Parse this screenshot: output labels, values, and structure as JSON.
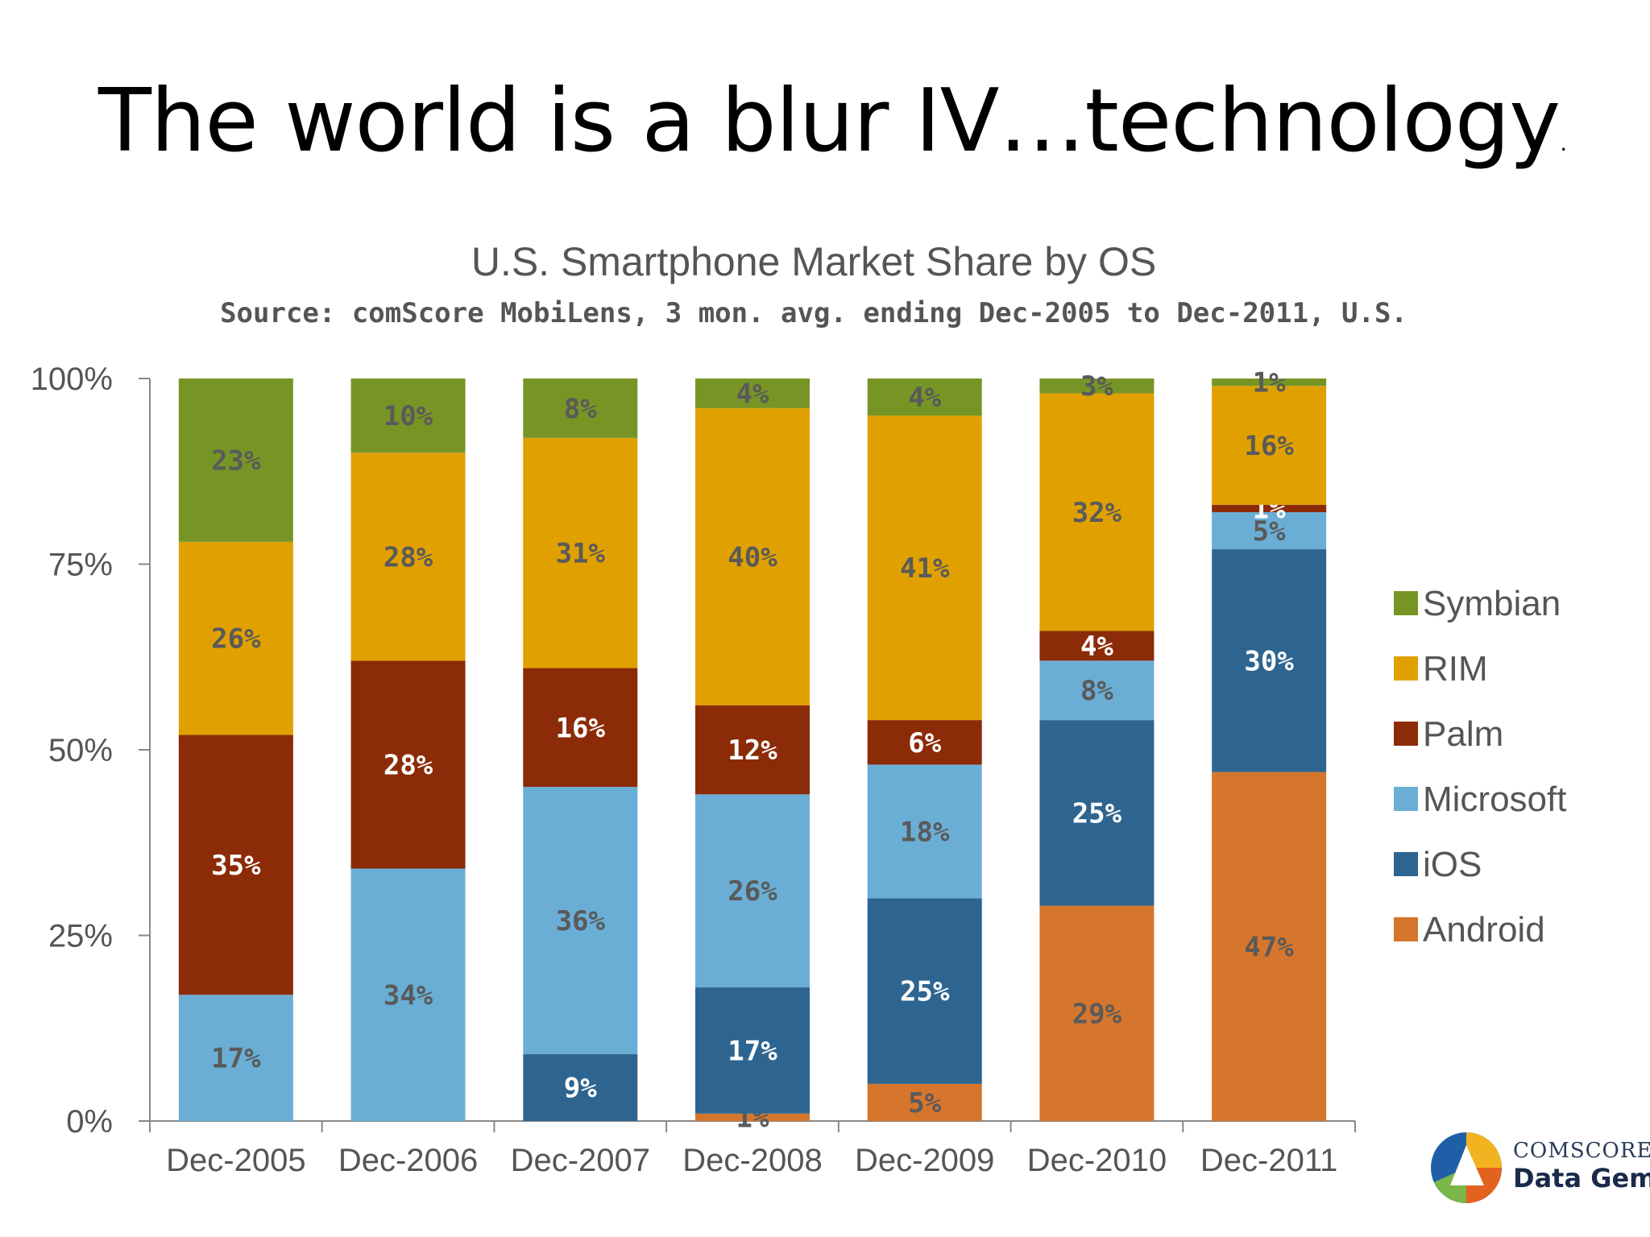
{
  "slide": {
    "title": "The world is a blur IV…technology",
    "title_suffix": "."
  },
  "logo": {
    "line1": "COMSCORE",
    "line2": "Data Gem",
    "icon": "comscore-logo-icon"
  },
  "chart_data": {
    "type": "bar",
    "stacked": true,
    "title": "U.S. Smartphone Market Share by OS",
    "subtitle": "Source: comScore MobiLens, 3 mon. avg. ending Dec-2005 to Dec-2011, U.S.",
    "categories": [
      "Dec-2005",
      "Dec-2006",
      "Dec-2007",
      "Dec-2008",
      "Dec-2009",
      "Dec-2010",
      "Dec-2011"
    ],
    "yticks": [
      "0%",
      "25%",
      "50%",
      "75%",
      "100%"
    ],
    "ylim": [
      0,
      100
    ],
    "legend_position": "right",
    "grid": false,
    "series": [
      {
        "name": "Android",
        "color": "#d5762c",
        "values": [
          0,
          0,
          0,
          1,
          5,
          29,
          47
        ],
        "labels": [
          "",
          "",
          "",
          "1%",
          "5%",
          "29%",
          "47%"
        ]
      },
      {
        "name": "iOS",
        "color": "#2e6590",
        "values": [
          0,
          0,
          9,
          17,
          25,
          25,
          30
        ],
        "labels": [
          "",
          "",
          "9%",
          "17%",
          "25%",
          "25%",
          "30%"
        ]
      },
      {
        "name": "Microsoft",
        "color": "#6aaed6",
        "values": [
          17,
          34,
          36,
          26,
          18,
          8,
          5
        ],
        "labels": [
          "17%",
          "34%",
          "36%",
          "26%",
          "18%",
          "8%",
          "5%"
        ]
      },
      {
        "name": "Palm",
        "color": "#8b2b07",
        "values": [
          35,
          28,
          16,
          12,
          6,
          4,
          1
        ],
        "labels": [
          "35%",
          "28%",
          "16%",
          "12%",
          "6%",
          "4%",
          "1%"
        ]
      },
      {
        "name": "RIM",
        "color": "#e0a100",
        "values": [
          26,
          28,
          31,
          40,
          41,
          32,
          16
        ],
        "labels": [
          "26%",
          "28%",
          "31%",
          "40%",
          "41%",
          "32%",
          "16%"
        ]
      },
      {
        "name": "Symbian",
        "color": "#779525",
        "values": [
          23,
          10,
          8,
          4,
          4,
          3,
          1
        ],
        "labels": [
          "23%",
          "10%",
          "8%",
          "4%",
          "4%",
          "3%",
          "1%"
        ]
      }
    ],
    "legend_order": [
      "Symbian",
      "RIM",
      "Palm",
      "Microsoft",
      "iOS",
      "Android"
    ]
  }
}
